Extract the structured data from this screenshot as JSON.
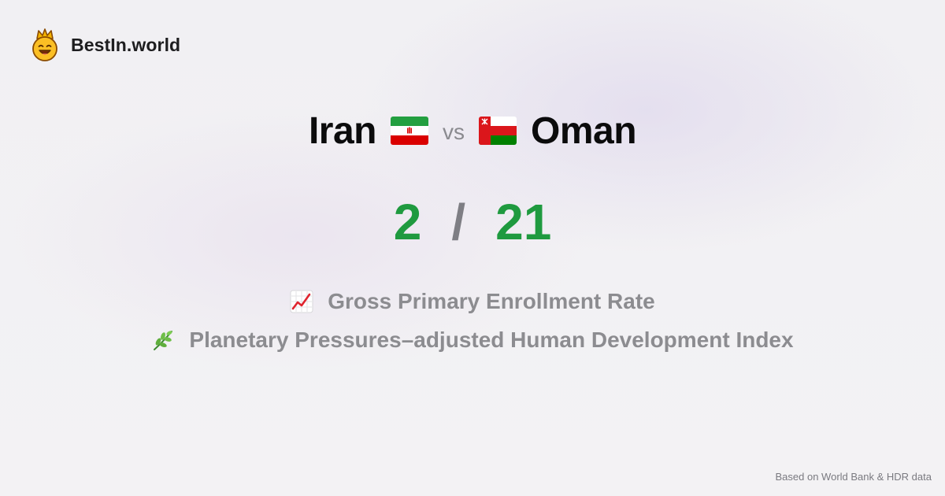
{
  "brand": {
    "name": "BestIn.world",
    "icon": "crowned-smiley-logo-icon"
  },
  "comparison": {
    "country_a": {
      "name": "Iran",
      "flag": "iran-flag-icon",
      "score": "2"
    },
    "vs_label": "vs",
    "country_b": {
      "name": "Oman",
      "flag": "oman-flag-icon",
      "score": "21"
    },
    "separator": "/"
  },
  "metrics": [
    {
      "icon": "chart-increasing-icon",
      "label": "Gross Primary Enrollment Rate"
    },
    {
      "icon": "herb-icon",
      "label": "Planetary Pressures–adjusted Human Development Index"
    }
  ],
  "footer": {
    "note": "Based on World Bank & HDR data"
  },
  "colors": {
    "score_green": "#1f9a3f",
    "title_black": "#0b0b0c",
    "muted_gray": "#8c8c90",
    "background": "#f2f1f3"
  }
}
